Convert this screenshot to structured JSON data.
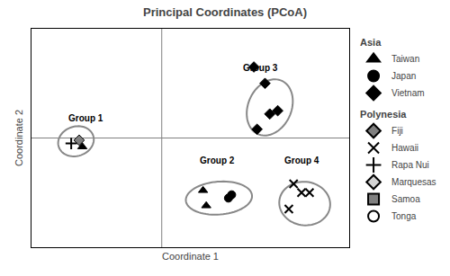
{
  "chart_data": {
    "type": "scatter",
    "title": "Principal Coordinates (PCoA)",
    "xlabel": "Coordinate 1",
    "ylabel": "Coordinate 2",
    "xlim": [
      -1.0,
      1.0
    ],
    "ylim": [
      -1.0,
      1.0
    ],
    "tick_labels": false,
    "grid": false,
    "legend": "right",
    "crosshair": {
      "x": -0.18,
      "y": 0.0,
      "color": "gray"
    },
    "groups": [
      {
        "name": "Group 1",
        "label_x": -0.78,
        "label_y": 0.12,
        "center": [
          -0.72,
          -0.03
        ],
        "width": 0.22,
        "height": 0.28,
        "angle": -15,
        "color": "#888888"
      },
      {
        "name": "Group 2",
        "label_x": 0.05,
        "label_y": -0.27,
        "center": [
          0.18,
          -0.55
        ],
        "width": 0.42,
        "height": 0.3,
        "angle": 10,
        "color": "#888888"
      },
      {
        "name": "Group 3",
        "label_x": 0.32,
        "label_y": 0.58,
        "center": [
          0.5,
          0.28
        ],
        "width": 0.28,
        "height": 0.52,
        "angle": -10,
        "color": "#888888"
      },
      {
        "name": "Group 4",
        "label_x": 0.58,
        "label_y": -0.27,
        "center": [
          0.72,
          -0.6
        ],
        "width": 0.32,
        "height": 0.4,
        "angle": 5,
        "color": "#888888"
      }
    ],
    "series": [
      {
        "name": "Taiwan",
        "legend_group": "Asia",
        "marker": "triangle",
        "color": "black",
        "x": [
          -0.68,
          0.08,
          0.1
        ],
        "y": [
          -0.08,
          -0.48,
          -0.62
        ]
      },
      {
        "name": "Japan",
        "legend_group": "Asia",
        "marker": "circle",
        "color": "black",
        "x": [
          0.24,
          0.26
        ],
        "y": [
          -0.55,
          -0.52
        ]
      },
      {
        "name": "Vietnam",
        "legend_group": "Asia",
        "marker": "diamond",
        "color": "black",
        "x": [
          0.42,
          0.5,
          0.55,
          0.47,
          0.4
        ],
        "y": [
          0.08,
          0.22,
          0.25,
          0.5,
          0.65
        ]
      },
      {
        "name": "Fiji",
        "legend_group": "Polynesia",
        "marker": "diamond",
        "color": "gray",
        "x": [
          -0.7
        ],
        "y": [
          -0.02
        ]
      },
      {
        "name": "Hawaii",
        "legend_group": "Polynesia",
        "marker": "x",
        "color": "black",
        "x": [
          0.65,
          0.7,
          0.75,
          0.62
        ],
        "y": [
          -0.42,
          -0.5,
          -0.5,
          -0.65
        ]
      },
      {
        "name": "Rapa Nui",
        "legend_group": "Polynesia",
        "marker": "plus",
        "color": "black",
        "x": [
          -0.75
        ],
        "y": [
          -0.05
        ]
      },
      {
        "name": "Marquesas",
        "legend_group": "Polynesia",
        "marker": "diamond",
        "color": "lightgray",
        "x": [],
        "y": []
      },
      {
        "name": "Samoa",
        "legend_group": "Polynesia",
        "marker": "square",
        "color": "gray",
        "x": [],
        "y": []
      },
      {
        "name": "Tonga",
        "legend_group": "Polynesia",
        "marker": "circle",
        "color": "white",
        "x": [],
        "y": []
      }
    ]
  }
}
